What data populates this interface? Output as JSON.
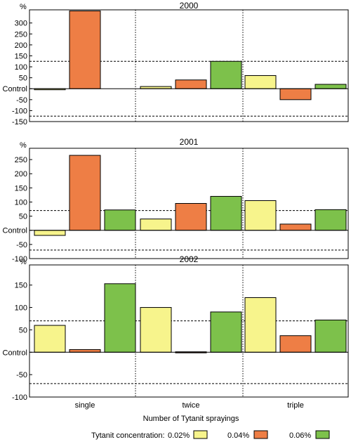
{
  "chart_data": [
    {
      "type": "bar",
      "title": "2000",
      "unit_label": "%",
      "control_label": "Control",
      "categories": [
        "single",
        "twice",
        "triple"
      ],
      "series": [
        {
          "name": "0.02%",
          "values": [
            -4,
            10,
            60
          ]
        },
        {
          "name": "0.04%",
          "values": [
            355,
            40,
            -50
          ]
        },
        {
          "name": "0.06%",
          "values": [
            0,
            125,
            20
          ]
        }
      ],
      "yticks": [
        300,
        250,
        200,
        150,
        100,
        50,
        -50,
        -100,
        -150
      ],
      "ylim": [
        -150,
        360
      ],
      "threshold": [
        125,
        -125
      ],
      "grid": false
    },
    {
      "type": "bar",
      "title": "2001",
      "unit_label": "%",
      "control_label": "Control",
      "categories": [
        "single",
        "twice",
        "triple"
      ],
      "series": [
        {
          "name": "0.02%",
          "values": [
            -18,
            40,
            105
          ]
        },
        {
          "name": "0.04%",
          "values": [
            265,
            95,
            22
          ]
        },
        {
          "name": "0.06%",
          "values": [
            72,
            120,
            73
          ]
        }
      ],
      "yticks": [
        250,
        200,
        150,
        100,
        50,
        -50,
        -100
      ],
      "ylim": [
        -100,
        290
      ],
      "threshold": [
        70,
        -70
      ],
      "grid": false
    },
    {
      "type": "bar",
      "title": "2002",
      "unit_label": "%",
      "control_label": "Control",
      "categories": [
        "single",
        "twice",
        "triple"
      ],
      "series": [
        {
          "name": "0.02%",
          "values": [
            60,
            100,
            122
          ]
        },
        {
          "name": "0.04%",
          "values": [
            6,
            1,
            37
          ]
        },
        {
          "name": "0.06%",
          "values": [
            153,
            90,
            72
          ]
        }
      ],
      "yticks": [
        150,
        100,
        50,
        -50,
        -100
      ],
      "ylim": [
        -100,
        195
      ],
      "threshold": [
        70,
        -70
      ],
      "grid": false
    }
  ],
  "xlabel": "Number of Tytanit sprayings",
  "legend": {
    "title": "Tytanit concentration:",
    "items": [
      {
        "label": "0.02%",
        "color": "#F7F48C"
      },
      {
        "label": "0.04%",
        "color": "#EE7E45"
      },
      {
        "label": "0.06%",
        "color": "#7DC14B"
      }
    ],
    "placement": "bottom"
  }
}
